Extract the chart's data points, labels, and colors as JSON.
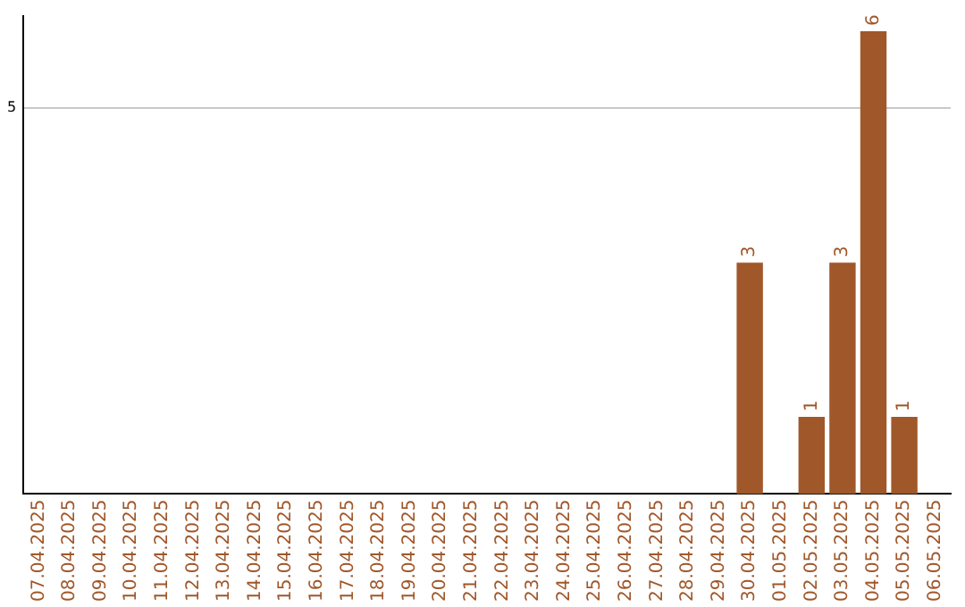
{
  "chart_data": {
    "type": "bar",
    "categories": [
      "07.04.2025",
      "08.04.2025",
      "09.04.2025",
      "10.04.2025",
      "11.04.2025",
      "12.04.2025",
      "13.04.2025",
      "14.04.2025",
      "15.04.2025",
      "16.04.2025",
      "17.04.2025",
      "18.04.2025",
      "19.04.2025",
      "20.04.2025",
      "21.04.2025",
      "22.04.2025",
      "23.04.2025",
      "24.04.2025",
      "25.04.2025",
      "26.04.2025",
      "27.04.2025",
      "28.04.2025",
      "29.04.2025",
      "30.04.2025",
      "01.05.2025",
      "02.05.2025",
      "03.05.2025",
      "04.05.2025",
      "05.05.2025",
      "06.05.2025"
    ],
    "values": [
      null,
      null,
      null,
      null,
      null,
      null,
      null,
      null,
      null,
      null,
      null,
      null,
      null,
      null,
      null,
      null,
      null,
      null,
      null,
      null,
      null,
      null,
      null,
      3,
      null,
      1,
      3,
      6,
      1,
      null
    ],
    "data_labels": true,
    "color": "#a0572a",
    "ylim": [
      0,
      6.2
    ],
    "yticks": [
      5
    ],
    "grid": "y"
  }
}
